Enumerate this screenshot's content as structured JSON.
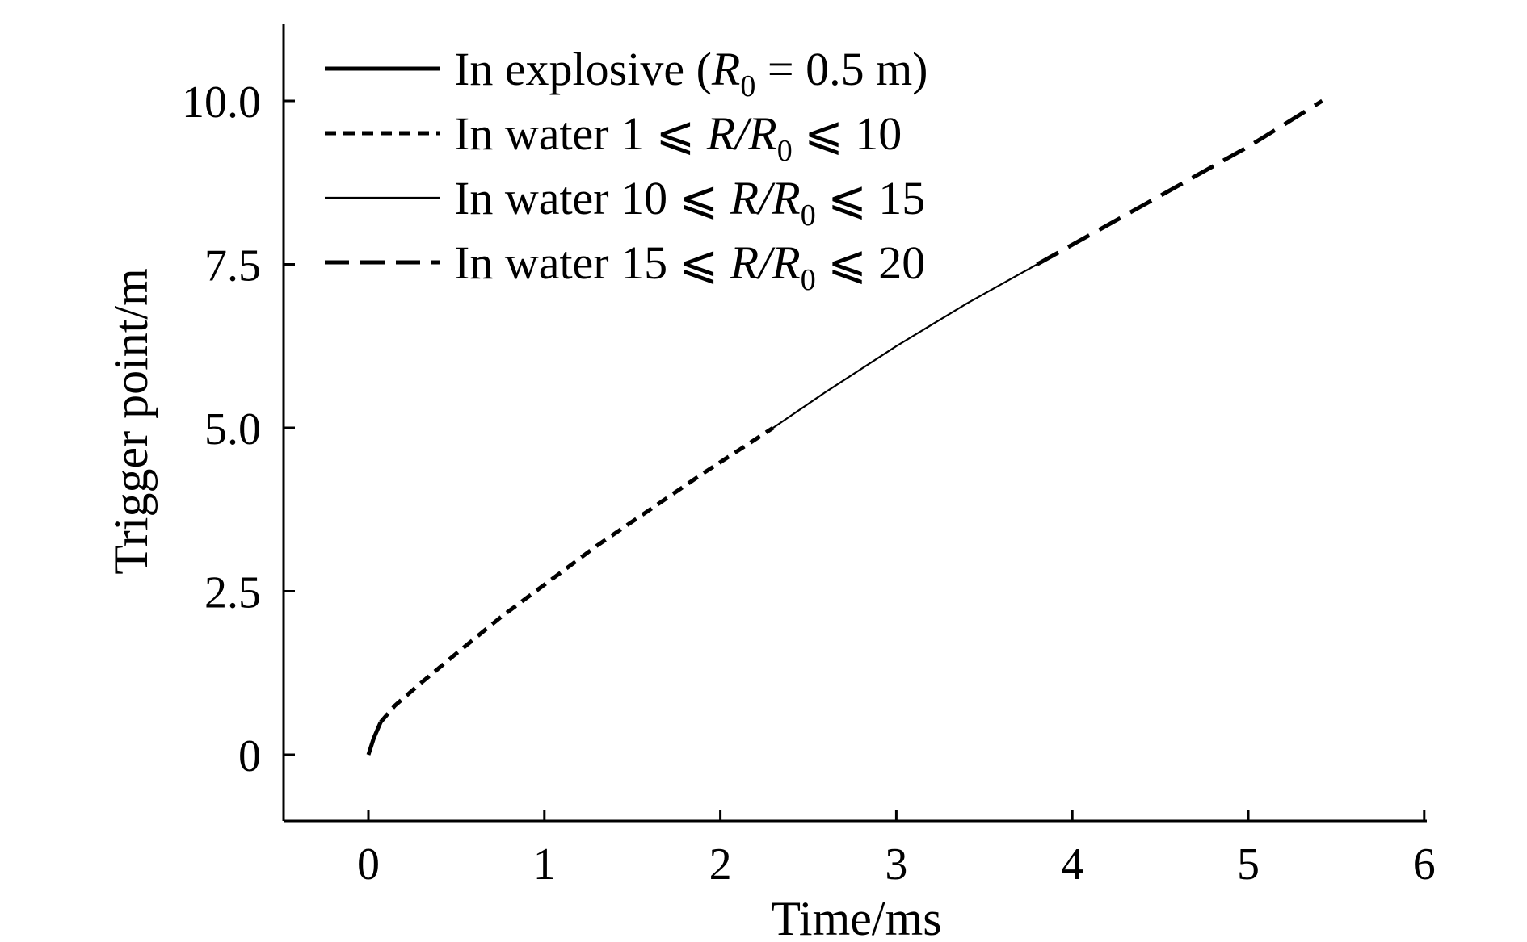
{
  "chart_data": {
    "type": "line",
    "xlabel": "Time/ms",
    "ylabel": "Trigger point/m",
    "xlim": [
      -0.5,
      6
    ],
    "ylim": [
      -1,
      11
    ],
    "xticks": [
      0,
      1,
      2,
      3,
      4,
      5,
      6
    ],
    "xtick_labels": [
      "0",
      "1",
      "2",
      "3",
      "4",
      "5",
      "6"
    ],
    "yticks": [
      0,
      2.5,
      5.0,
      7.5,
      10.0
    ],
    "ytick_labels": [
      "0",
      "2.5",
      "5.0",
      "7.5",
      "10.0"
    ],
    "grid": false,
    "legend_position": "top-left",
    "series": [
      {
        "name": "In explosive (R0 = 0.5 m)",
        "legend": {
          "pre": "In explosive (",
          "var": "R",
          "sub": "0",
          "post": " = 0.5 m)"
        },
        "style": "solid-thick",
        "x": [
          0,
          0.03,
          0.07
        ],
        "y": [
          0,
          0.25,
          0.5
        ]
      },
      {
        "name": "In water 1 ⩽ R/R0 ⩽ 10",
        "legend": {
          "pre": "In water 1 ⩽ ",
          "var": "R/R",
          "sub": "0",
          "post": " ⩽ 10"
        },
        "style": "short-dash",
        "x": [
          0.07,
          0.15,
          0.3,
          0.5,
          0.75,
          1.0,
          1.3,
          1.6,
          1.9,
          2.1,
          2.3
        ],
        "y": [
          0.5,
          0.75,
          1.1,
          1.55,
          2.1,
          2.6,
          3.2,
          3.75,
          4.3,
          4.65,
          5.0
        ]
      },
      {
        "name": "In water 10 ⩽ R/R0 ⩽ 15",
        "legend": {
          "pre": "In water 10 ⩽ ",
          "var": "R/R",
          "sub": "0",
          "post": " ⩽ 15"
        },
        "style": "solid-thin",
        "x": [
          2.3,
          2.6,
          3.0,
          3.4,
          3.8
        ],
        "y": [
          5.0,
          5.55,
          6.25,
          6.9,
          7.5
        ]
      },
      {
        "name": "In water 15 ⩽ R/R0 ⩽ 20",
        "legend": {
          "pre": "In water 15 ⩽ ",
          "var": "R/R",
          "sub": "0",
          "post": " ⩽ 20"
        },
        "style": "long-dash",
        "x": [
          3.8,
          4.2,
          4.6,
          5.0,
          5.42
        ],
        "y": [
          7.5,
          8.1,
          8.7,
          9.3,
          10.0
        ]
      }
    ]
  }
}
